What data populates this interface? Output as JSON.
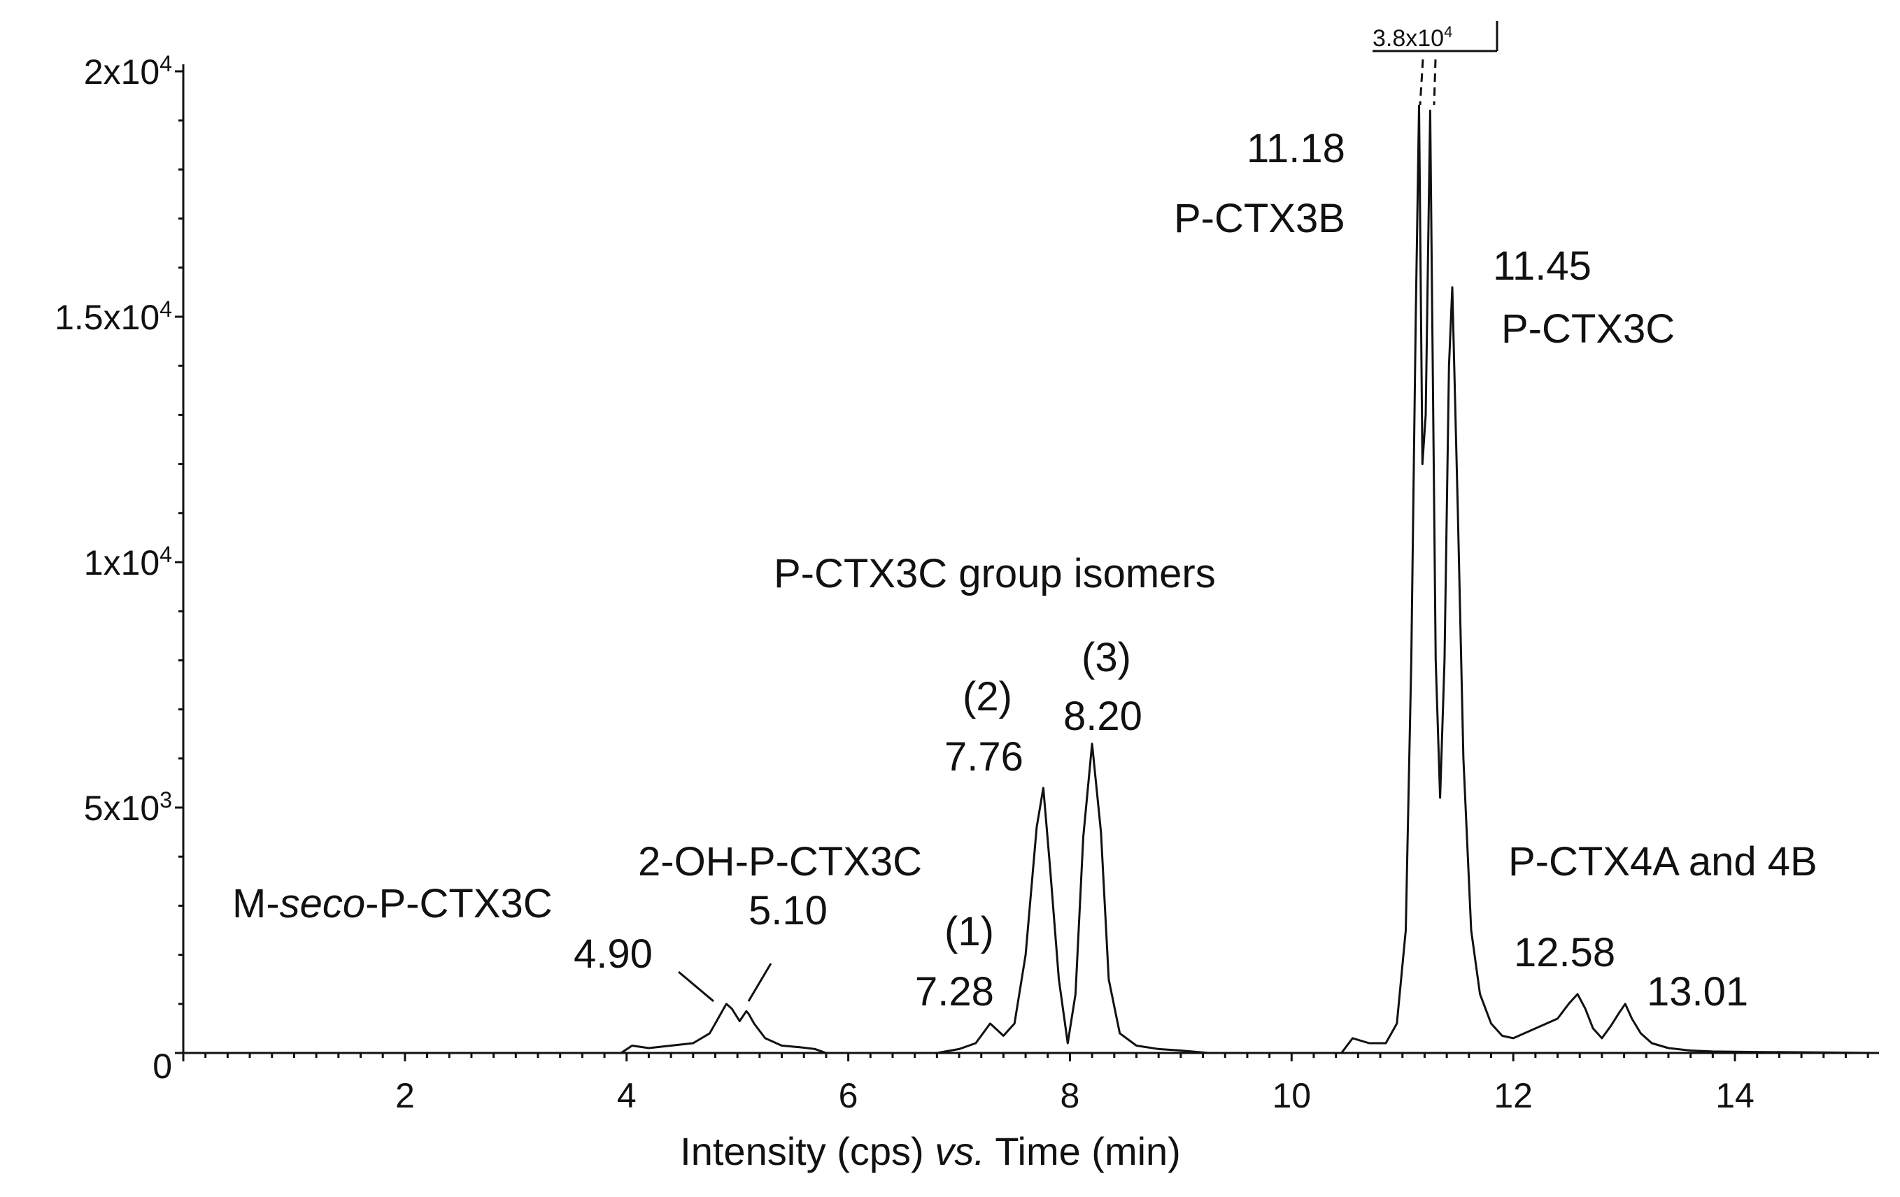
{
  "chart_data": {
    "type": "line",
    "title": "",
    "xlabel": {
      "pre": "Intensity (cps) ",
      "italic": "vs.",
      "post": " Time (min)"
    },
    "ylabel": "",
    "xlim": [
      0,
      15.3
    ],
    "ylim": [
      0,
      20000
    ],
    "x_ticks": [
      {
        "value": 2,
        "label": "2"
      },
      {
        "value": 4,
        "label": "4"
      },
      {
        "value": 6,
        "label": "6"
      },
      {
        "value": 8,
        "label": "8"
      },
      {
        "value": 10,
        "label": "10"
      },
      {
        "value": 12,
        "label": "12"
      },
      {
        "value": 14,
        "label": "14"
      }
    ],
    "y_ticks": [
      {
        "value": 0,
        "base": "0",
        "exp": ""
      },
      {
        "value": 5000,
        "base": "5x10",
        "exp": "3"
      },
      {
        "value": 10000,
        "base": "1x10",
        "exp": "4"
      },
      {
        "value": 15000,
        "base": "1.5x10",
        "exp": "4"
      },
      {
        "value": 20000,
        "base": "2x10",
        "exp": "4"
      }
    ],
    "series": [
      {
        "name": "trace-segment-1",
        "x": [
          3.95,
          4.05,
          4.2,
          4.4,
          4.6,
          4.75,
          4.85,
          4.9,
          4.95,
          5.02,
          5.08,
          5.1,
          5.15,
          5.25,
          5.4,
          5.55,
          5.7,
          5.8
        ],
        "values": [
          0,
          150,
          100,
          150,
          200,
          400,
          800,
          1000,
          900,
          650,
          850,
          800,
          600,
          300,
          150,
          120,
          80,
          0
        ]
      },
      {
        "name": "trace-segment-2",
        "x": [
          6.8,
          7.0,
          7.15,
          7.28,
          7.4,
          7.5,
          7.6,
          7.7,
          7.76,
          7.82,
          7.9,
          7.98,
          8.05,
          8.12,
          8.2,
          8.28,
          8.35,
          8.45,
          8.6,
          8.8,
          9.0,
          9.25
        ],
        "values": [
          0,
          80,
          200,
          600,
          350,
          600,
          2000,
          4600,
          5400,
          3800,
          1500,
          200,
          1200,
          4400,
          6300,
          4500,
          1500,
          400,
          150,
          80,
          50,
          0
        ]
      },
      {
        "name": "trace-segment-3",
        "x": [
          10.45,
          10.55,
          10.7,
          10.85,
          10.95,
          11.03,
          11.08,
          11.12,
          11.15,
          11.18,
          11.21,
          11.25,
          11.3,
          11.34,
          11.38,
          11.42,
          11.45,
          11.5,
          11.55,
          11.62,
          11.7,
          11.8,
          11.9,
          12.0,
          12.1,
          12.2,
          12.3,
          12.4,
          12.5,
          12.58,
          12.65,
          12.72,
          12.8,
          12.88,
          12.95,
          13.01,
          13.07,
          13.15,
          13.25,
          13.4,
          13.6,
          13.8,
          14.2,
          14.8,
          15.3
        ],
        "values": [
          0,
          300,
          200,
          200,
          600,
          2500,
          8000,
          15000,
          19300,
          12000,
          13000,
          19200,
          8000,
          5200,
          8000,
          14000,
          15600,
          11000,
          6000,
          2500,
          1200,
          600,
          350,
          300,
          400,
          500,
          600,
          700,
          1000,
          1200,
          900,
          500,
          300,
          550,
          800,
          1000,
          700,
          400,
          200,
          100,
          50,
          30,
          20,
          10,
          0
        ]
      }
    ],
    "overflow_marker": {
      "base": "3.8x10",
      "exp": "4"
    },
    "annotations": [
      {
        "id": "p3b-time",
        "text": "11.18"
      },
      {
        "id": "p3b-name",
        "text": "P-CTX3B"
      },
      {
        "id": "p3c-time",
        "text": "11.45"
      },
      {
        "id": "p3c-name",
        "text": "P-CTX3C"
      },
      {
        "id": "group",
        "text": "P-CTX3C group isomers"
      },
      {
        "id": "iso3-idx",
        "text": "(3)"
      },
      {
        "id": "iso3-time",
        "text": "8.20"
      },
      {
        "id": "iso2-idx",
        "text": "(2)"
      },
      {
        "id": "iso2-time",
        "text": "7.76"
      },
      {
        "id": "iso1-idx",
        "text": "(1)"
      },
      {
        "id": "iso1-time",
        "text": "7.28"
      },
      {
        "id": "oh-name",
        "text": "2-OH-P-CTX3C"
      },
      {
        "id": "oh-time",
        "text": "5.10"
      },
      {
        "id": "mseco-time",
        "text": "4.90"
      },
      {
        "id": "p4-name",
        "text": "P-CTX4A and 4B"
      },
      {
        "id": "p4a-time",
        "text": "12.58"
      },
      {
        "id": "p4b-time",
        "text": "13.01"
      }
    ],
    "mseco_label": {
      "pre": "M-",
      "italic": "seco",
      "post": "-P-CTX3C"
    }
  }
}
